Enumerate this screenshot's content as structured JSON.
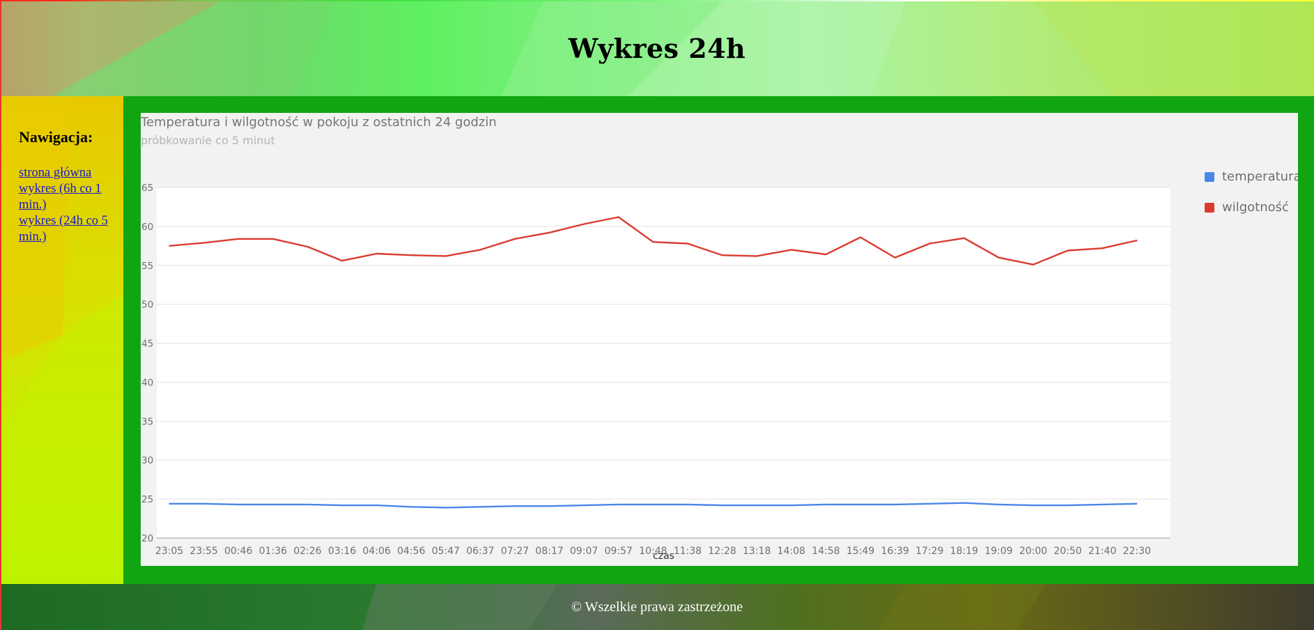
{
  "header": {
    "title": "Wykres 24h"
  },
  "nav": {
    "heading": "Nawigacja:",
    "links": [
      {
        "label": "strona główna"
      },
      {
        "label": "wykres (6h co 1 min.)"
      },
      {
        "label": "wykres (24h co 5 min.)"
      }
    ]
  },
  "footer": {
    "text": "© Wszelkie prawa zastrzeżone"
  },
  "colors": {
    "temperature": "#4a86e8",
    "humidity": "#db3b2f",
    "panel": "#11a511"
  },
  "chart_data": {
    "type": "line",
    "title": "Temperatura i wilgotność w pokoju z ostatnich 24 godzin",
    "subtitle": "próbkowanie co 5 minut",
    "xlabel": "czas",
    "ylabel": "",
    "ylim": [
      20,
      65
    ],
    "yticks": [
      "20",
      "25",
      "30",
      "35",
      "40",
      "45",
      "50",
      "55",
      "60",
      "65"
    ],
    "grid": true,
    "legend_position": "right",
    "categories": [
      "23:05",
      "23:55",
      "00:46",
      "01:36",
      "02:26",
      "03:16",
      "04:06",
      "04:56",
      "05:47",
      "06:37",
      "07:27",
      "08:17",
      "09:07",
      "09:57",
      "10:48",
      "11:38",
      "12:28",
      "13:18",
      "14:08",
      "14:58",
      "15:49",
      "16:39",
      "17:29",
      "18:19",
      "19:09",
      "20:00",
      "20:50",
      "21:40",
      "22:30"
    ],
    "series": [
      {
        "name": "temperatura",
        "color": "#4a86e8",
        "values": [
          24.4,
          24.4,
          24.3,
          24.3,
          24.3,
          24.2,
          24.2,
          24.0,
          23.9,
          24.0,
          24.1,
          24.1,
          24.2,
          24.3,
          24.3,
          24.3,
          24.2,
          24.2,
          24.2,
          24.3,
          24.3,
          24.3,
          24.4,
          24.5,
          24.3,
          24.2,
          24.2,
          24.3,
          24.4
        ]
      },
      {
        "name": "wilgotność",
        "color": "#db3b2f",
        "values": [
          57.5,
          57.9,
          58.4,
          58.4,
          57.4,
          55.6,
          56.5,
          56.3,
          56.2,
          57.0,
          58.4,
          59.2,
          60.3,
          61.2,
          58.0,
          57.8,
          56.3,
          56.2,
          57.0,
          56.4,
          58.6,
          56.0,
          57.8,
          58.5,
          56.0,
          55.1,
          56.9,
          57.2,
          58.2
        ]
      }
    ]
  }
}
